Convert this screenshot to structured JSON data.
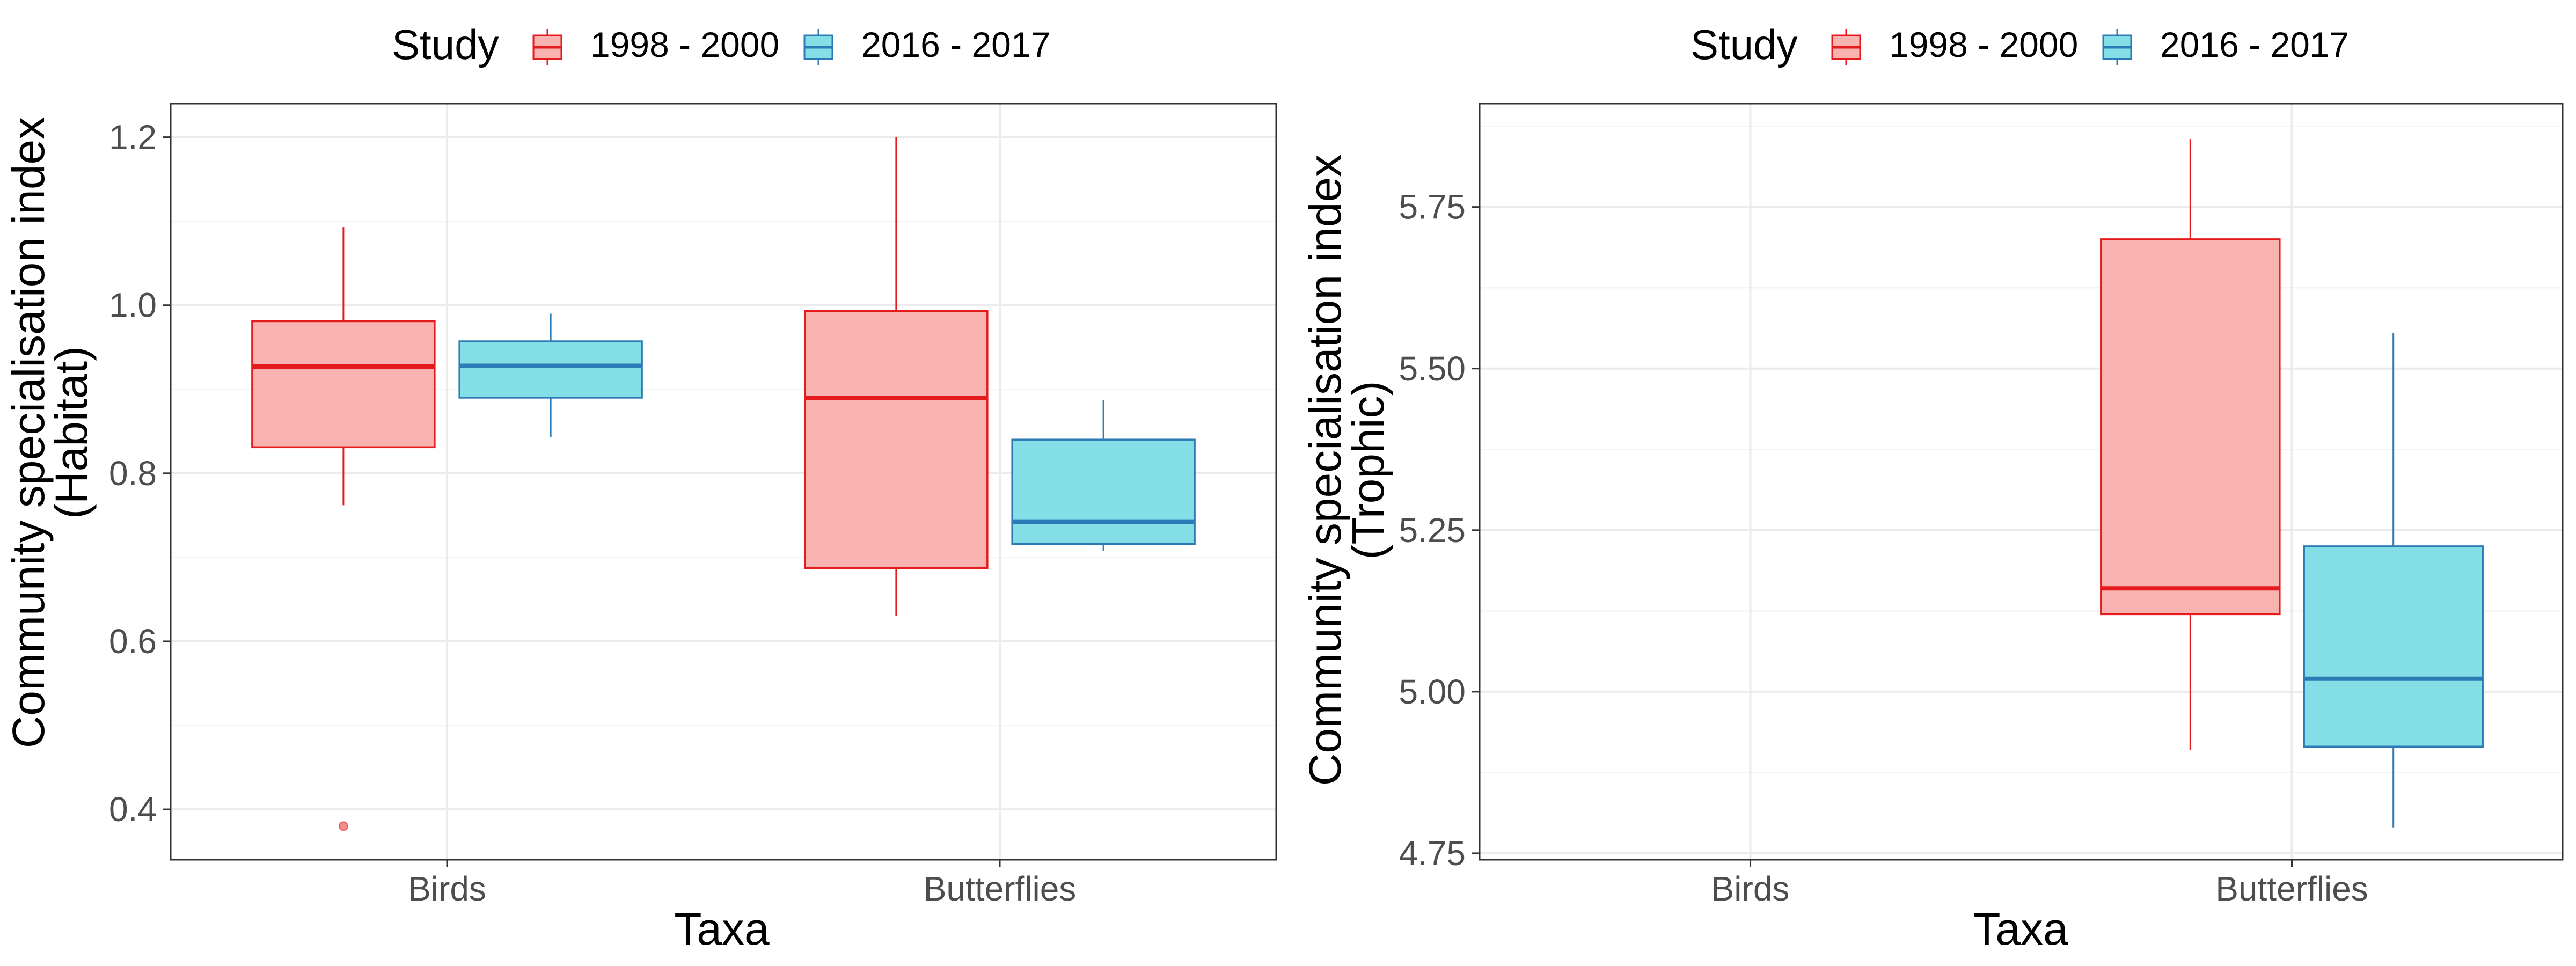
{
  "colors": {
    "1998 - 2000": {
      "stroke": "#e41a1c",
      "fill": "#f8b3b0",
      "median": "#e41a1c"
    },
    "2016 - 2017": {
      "stroke": "#2c7bb6",
      "fill": "#83dfe5",
      "median": "#2c7bb6"
    }
  },
  "legend": {
    "title": "Study",
    "entries": [
      "1998 - 2000",
      "2016 - 2017"
    ]
  },
  "chart_data": [
    {
      "type": "box",
      "xlabel": "Taxa",
      "ylabel_line1": "Community specialisation index",
      "ylabel_line2": "(Habitat)",
      "categories": [
        "Birds",
        "Butterflies"
      ],
      "ylim": [
        0.34,
        1.24
      ],
      "yticks": [
        0.4,
        0.6,
        0.8,
        1.0,
        1.2
      ],
      "ytick_labels": [
        "0.4",
        "0.6",
        "0.8",
        "1.0",
        "1.2"
      ],
      "grid": true,
      "legend_position": "top",
      "series": [
        {
          "name": "1998 - 2000",
          "boxes": [
            {
              "category": "Birds",
              "whisker_low": 0.762,
              "q1": 0.831,
              "median": 0.927,
              "q3": 0.981,
              "whisker_high": 1.093,
              "outliers": [
                0.38
              ]
            },
            {
              "category": "Butterflies",
              "whisker_low": 0.63,
              "q1": 0.687,
              "median": 0.89,
              "q3": 0.993,
              "whisker_high": 1.2,
              "outliers": []
            }
          ]
        },
        {
          "name": "2016 - 2017",
          "boxes": [
            {
              "category": "Birds",
              "whisker_low": 0.843,
              "q1": 0.89,
              "median": 0.928,
              "q3": 0.957,
              "whisker_high": 0.99,
              "outliers": []
            },
            {
              "category": "Butterflies",
              "whisker_low": 0.708,
              "q1": 0.716,
              "median": 0.742,
              "q3": 0.84,
              "whisker_high": 0.887,
              "outliers": []
            }
          ]
        }
      ]
    },
    {
      "type": "box",
      "xlabel": "Taxa",
      "ylabel_line1": "Community specialisation index",
      "ylabel_line2": "(Trophic)",
      "categories": [
        "Birds",
        "Butterflies"
      ],
      "ylim": [
        4.74,
        5.91
      ],
      "yticks": [
        4.75,
        5.0,
        5.25,
        5.5,
        5.75
      ],
      "ytick_labels": [
        "4.75",
        "5.00",
        "5.25",
        "5.50",
        "5.75"
      ],
      "grid": true,
      "legend_position": "top",
      "series": [
        {
          "name": "1998 - 2000",
          "boxes": [
            {
              "category": "Butterflies",
              "whisker_low": 4.91,
              "q1": 5.12,
              "median": 5.16,
              "q3": 5.7,
              "whisker_high": 5.855,
              "outliers": []
            }
          ]
        },
        {
          "name": "2016 - 2017",
          "boxes": [
            {
              "category": "Butterflies",
              "whisker_low": 4.79,
              "q1": 4.915,
              "median": 5.02,
              "q3": 5.225,
              "whisker_high": 5.555,
              "outliers": []
            }
          ]
        }
      ]
    }
  ]
}
